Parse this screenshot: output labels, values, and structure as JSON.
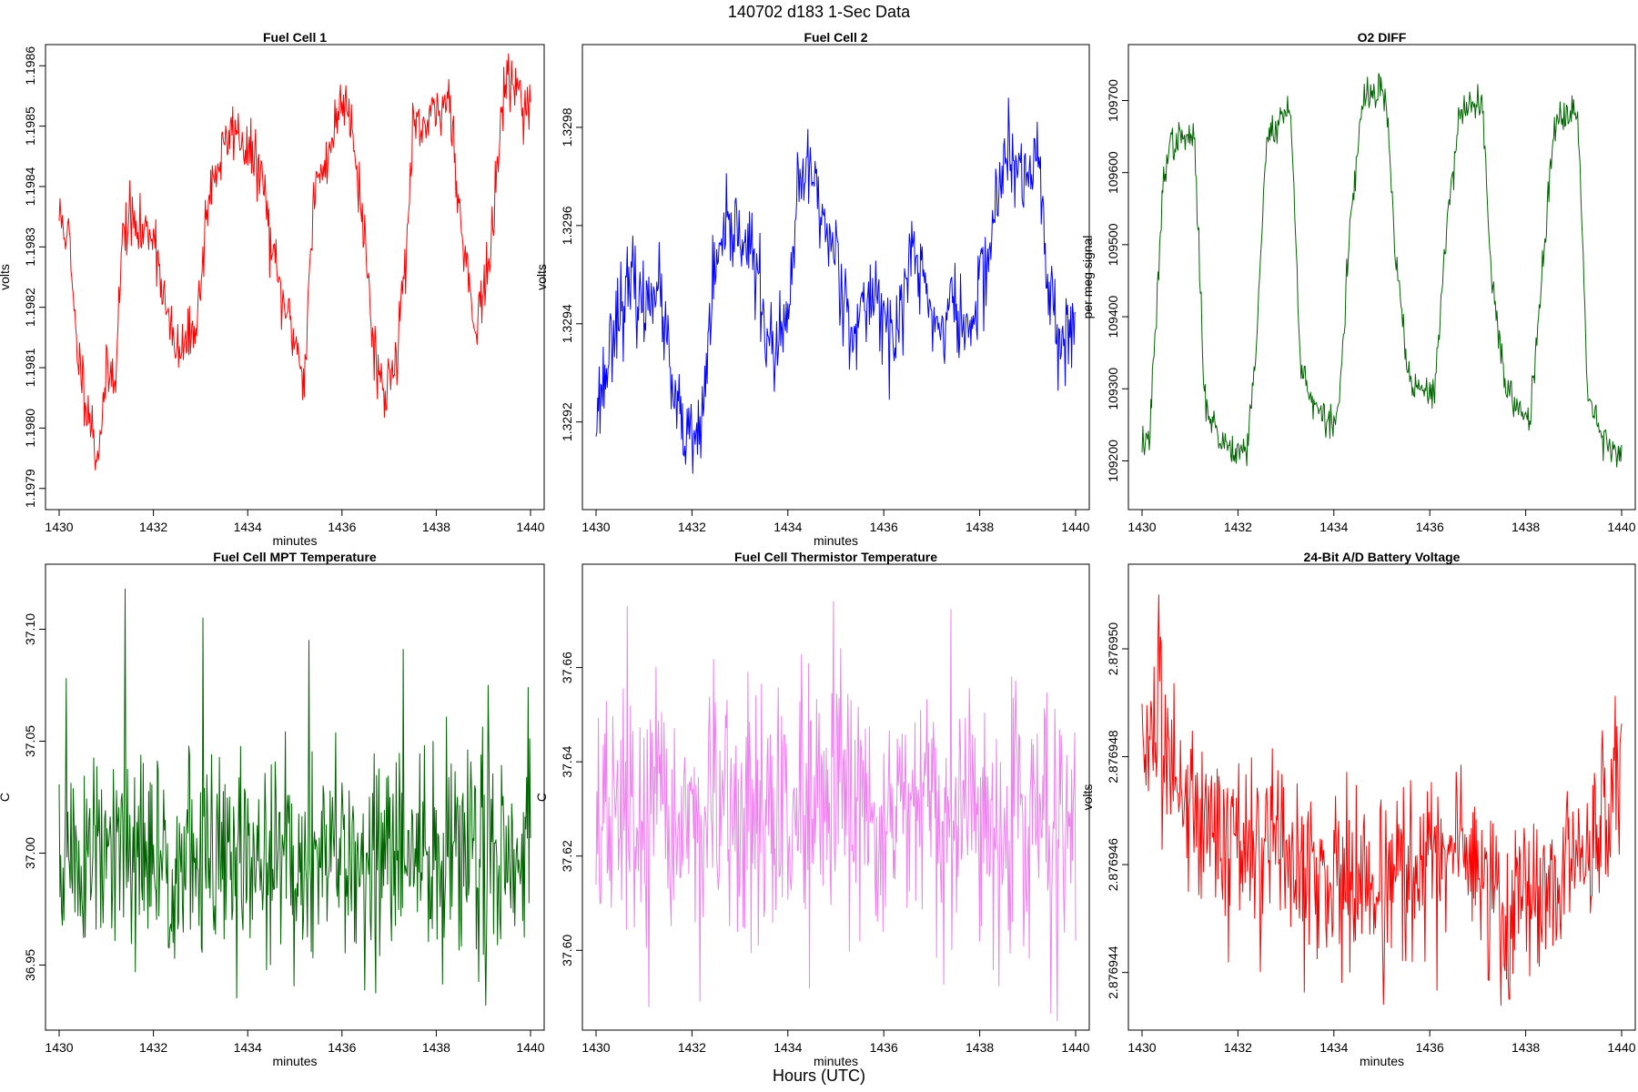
{
  "figure": {
    "suptitle": "140702   d183   1-Sec Data",
    "bottom_label": "Hours (UTC)"
  },
  "chart_data": [
    {
      "type": "line",
      "title": "Fuel Cell 1",
      "xlabel": "minutes",
      "ylabel": "volts",
      "color": "#ff0000",
      "xlim": [
        1430,
        1440
      ],
      "ylim": [
        1.19788,
        1.19862
      ],
      "xticks": [
        1430,
        1432,
        1434,
        1436,
        1438,
        1440
      ],
      "xtick_labels": [
        "1430",
        "1432",
        "1434",
        "1436",
        "1438",
        "1440"
      ],
      "yticks": [
        1.1979,
        1.198,
        1.1981,
        1.1982,
        1.1983,
        1.1984,
        1.1985,
        1.1986
      ],
      "ytick_labels": [
        "1.1979",
        "1.1980",
        "1.1981",
        "1.1982",
        "1.1983",
        "1.1984",
        "1.1985",
        "1.1986"
      ],
      "noise": 2.5e-05,
      "noise_seed": 11,
      "x": [
        1430.0,
        1430.2,
        1430.35,
        1430.5,
        1430.7,
        1430.8,
        1431.0,
        1431.2,
        1431.35,
        1431.5,
        1431.7,
        1432.0,
        1432.3,
        1432.5,
        1432.8,
        1433.0,
        1433.1,
        1433.3,
        1433.7,
        1434.0,
        1434.3,
        1434.5,
        1434.7,
        1435.0,
        1435.2,
        1435.4,
        1435.8,
        1436.0,
        1436.2,
        1436.5,
        1436.65,
        1436.9,
        1437.2,
        1437.35,
        1437.5,
        1437.8,
        1438.0,
        1438.3,
        1438.5,
        1438.8,
        1439.0,
        1439.2,
        1439.4,
        1439.6,
        1439.8,
        1440.0
      ],
      "y": [
        1.19835,
        1.19832,
        1.19815,
        1.19808,
        1.198,
        1.19795,
        1.19808,
        1.1981,
        1.19832,
        1.19835,
        1.19832,
        1.19833,
        1.19818,
        1.19812,
        1.19815,
        1.19822,
        1.19835,
        1.19842,
        1.1985,
        1.19846,
        1.19842,
        1.1983,
        1.19822,
        1.19815,
        1.19808,
        1.19838,
        1.19848,
        1.19855,
        1.19852,
        1.1983,
        1.19815,
        1.19805,
        1.19815,
        1.19828,
        1.19848,
        1.1985,
        1.19852,
        1.19855,
        1.19835,
        1.19818,
        1.19822,
        1.19832,
        1.19855,
        1.19858,
        1.19855,
        1.19853
      ]
    },
    {
      "type": "line",
      "title": "Fuel Cell 2",
      "xlabel": "minutes",
      "ylabel": "volts",
      "color": "#0000ff",
      "xlim": [
        1430,
        1440
      ],
      "ylim": [
        1.32904,
        1.32995
      ],
      "xticks": [
        1430,
        1432,
        1434,
        1436,
        1438,
        1440
      ],
      "xtick_labels": [
        "1430",
        "1432",
        "1434",
        "1436",
        "1438",
        "1440"
      ],
      "yticks": [
        1.3292,
        1.3294,
        1.3296,
        1.3298
      ],
      "ytick_labels": [
        "1.3292",
        "1.3294",
        "1.3296",
        "1.3298"
      ],
      "noise": 4.5e-05,
      "noise_seed": 23,
      "x": [
        1430.0,
        1430.2,
        1430.4,
        1430.6,
        1430.8,
        1431.0,
        1431.2,
        1431.4,
        1431.6,
        1431.8,
        1432.0,
        1432.2,
        1432.4,
        1432.6,
        1432.8,
        1433.0,
        1433.2,
        1433.4,
        1433.6,
        1433.8,
        1434.0,
        1434.2,
        1434.4,
        1434.6,
        1434.8,
        1435.0,
        1435.2,
        1435.4,
        1435.6,
        1435.8,
        1436.0,
        1436.2,
        1436.4,
        1436.6,
        1436.8,
        1437.0,
        1437.2,
        1437.4,
        1437.6,
        1437.8,
        1438.0,
        1438.2,
        1438.4,
        1438.6,
        1438.8,
        1439.0,
        1439.2,
        1439.4,
        1439.6,
        1439.8,
        1440.0
      ],
      "y": [
        1.32922,
        1.3293,
        1.32942,
        1.32945,
        1.32948,
        1.32942,
        1.3295,
        1.32942,
        1.32925,
        1.32918,
        1.32915,
        1.32918,
        1.32945,
        1.32955,
        1.32958,
        1.3296,
        1.32955,
        1.32948,
        1.32935,
        1.32935,
        1.3294,
        1.32965,
        1.32972,
        1.32968,
        1.32958,
        1.32955,
        1.32945,
        1.32938,
        1.32942,
        1.32948,
        1.32942,
        1.32935,
        1.32945,
        1.32955,
        1.3295,
        1.32942,
        1.32938,
        1.32945,
        1.3294,
        1.32938,
        1.32948,
        1.32955,
        1.32968,
        1.32975,
        1.3297,
        1.32968,
        1.32978,
        1.3295,
        1.3294,
        1.32938,
        1.32938
      ]
    },
    {
      "type": "line",
      "title": "O2 DIFF",
      "xlabel": "",
      "ylabel": "per meg signal",
      "color": "#006400",
      "xlim": [
        1430,
        1440
      ],
      "ylim": [
        109145,
        109765
      ],
      "xticks": [
        1430,
        1432,
        1434,
        1436,
        1438,
        1440
      ],
      "xtick_labels": [
        "1430",
        "1432",
        "1434",
        "1436",
        "1438",
        "1440"
      ],
      "yticks": [
        109200,
        109300,
        109400,
        109500,
        109600,
        109700
      ],
      "ytick_labels": [
        "109200",
        "109300",
        "109400",
        "109500",
        "109600",
        "109700"
      ],
      "noise": 12,
      "noise_seed": 37,
      "x": [
        1430.0,
        1430.15,
        1430.3,
        1430.45,
        1430.6,
        1431.0,
        1431.1,
        1431.3,
        1431.6,
        1432.0,
        1432.2,
        1432.4,
        1432.6,
        1433.0,
        1433.1,
        1433.3,
        1433.6,
        1434.0,
        1434.1,
        1434.3,
        1434.6,
        1435.0,
        1435.1,
        1435.3,
        1435.6,
        1436.0,
        1436.1,
        1436.3,
        1436.6,
        1437.0,
        1437.1,
        1437.3,
        1437.6,
        1438.0,
        1438.1,
        1438.3,
        1438.6,
        1439.0,
        1439.1,
        1439.3,
        1439.6,
        1440.0
      ],
      "y": [
        109225,
        109230,
        109400,
        109600,
        109640,
        109650,
        109640,
        109290,
        109230,
        109215,
        109220,
        109380,
        109650,
        109685,
        109685,
        109340,
        109270,
        109250,
        109270,
        109490,
        109700,
        109715,
        109690,
        109470,
        109300,
        109295,
        109300,
        109480,
        109680,
        109700,
        109690,
        109450,
        109290,
        109265,
        109265,
        109430,
        109670,
        109695,
        109660,
        109290,
        109235,
        109205
      ]
    },
    {
      "type": "line",
      "title": "Fuel Cell MPT Temperature",
      "xlabel": "minutes",
      "ylabel": "C",
      "color": "#006400",
      "xlim": [
        1430,
        1440
      ],
      "ylim": [
        36.925,
        37.125
      ],
      "xticks": [
        1430,
        1432,
        1434,
        1436,
        1438,
        1440
      ],
      "xtick_labels": [
        "1430",
        "1432",
        "1434",
        "1436",
        "1438",
        "1440"
      ],
      "yticks": [
        36.95,
        37.0,
        37.05,
        37.1
      ],
      "ytick_labels": [
        "36.95",
        "37.00",
        "37.05",
        "37.10"
      ],
      "noise": 0.024,
      "noise_seed": 51,
      "spikes": [
        [
          1430.15,
          37.078
        ],
        [
          1431.4,
          37.118
        ],
        [
          1433.05,
          37.105
        ],
        [
          1435.3,
          37.095
        ],
        [
          1437.3,
          37.091
        ],
        [
          1439.1,
          37.075
        ],
        [
          1439.95,
          37.074
        ],
        [
          1439.05,
          36.932
        ]
      ],
      "x": [
        1430.0,
        1432.0,
        1434.0,
        1436.0,
        1438.0,
        1440.0
      ],
      "y": [
        36.998,
        36.996,
        36.996,
        36.997,
        36.997,
        37.003
      ]
    },
    {
      "type": "line",
      "title": "Fuel Cell Thermistor Temperature",
      "xlabel": "minutes",
      "ylabel": "C",
      "color": "#ee82ee",
      "xlim": [
        1430,
        1440
      ],
      "ylim": [
        37.585,
        37.68
      ],
      "xticks": [
        1430,
        1432,
        1434,
        1436,
        1438,
        1440
      ],
      "xtick_labels": [
        "1430",
        "1432",
        "1434",
        "1436",
        "1438",
        "1440"
      ],
      "yticks": [
        37.6,
        37.62,
        37.64,
        37.66
      ],
      "ytick_labels": [
        "37.60",
        "37.62",
        "37.64",
        "37.66"
      ],
      "noise": 0.013,
      "noise_seed": 67,
      "spikes": [
        [
          1430.65,
          37.673
        ],
        [
          1434.95,
          37.674
        ],
        [
          1431.1,
          37.588
        ],
        [
          1434.45,
          37.592
        ]
      ],
      "x": [
        1430.0,
        1432.0,
        1434.0,
        1436.0,
        1438.0,
        1440.0
      ],
      "y": [
        37.627,
        37.627,
        37.628,
        37.628,
        37.628,
        37.627
      ]
    },
    {
      "type": "line",
      "title": "24-Bit A/D Battery Voltage",
      "xlabel": "minutes",
      "ylabel": "volts",
      "color": "#ff0000",
      "xlim": [
        1430,
        1440
      ],
      "ylim": [
        2.8769431,
        2.8769514
      ],
      "xticks": [
        1430,
        1432,
        1434,
        1436,
        1438,
        1440
      ],
      "xtick_labels": [
        "1430",
        "1432",
        "1434",
        "1436",
        "1438",
        "1440"
      ],
      "yticks": [
        2.876944,
        2.876946,
        2.876948,
        2.87695
      ],
      "ytick_labels": [
        "2.876944",
        "2.876946",
        "2.876948",
        "2.876950"
      ],
      "noise": 8.5e-07,
      "noise_seed": 83,
      "spikes": [
        [
          1430.35,
          2.876951
        ],
        [
          1437.65,
          2.8769435
        ]
      ],
      "x": [
        1430.0,
        1430.5,
        1431.0,
        1431.5,
        1432.0,
        1433.0,
        1434.0,
        1435.0,
        1436.0,
        1437.0,
        1437.6,
        1438.0,
        1438.5,
        1439.0,
        1439.5,
        1440.0
      ],
      "y": [
        2.8769485,
        2.876948,
        2.8769472,
        2.8769468,
        2.8769464,
        2.876946,
        2.8769458,
        2.8769456,
        2.876946,
        2.8769462,
        2.8769448,
        2.8769456,
        2.8769452,
        2.8769462,
        2.8769466,
        2.8769476
      ]
    }
  ]
}
